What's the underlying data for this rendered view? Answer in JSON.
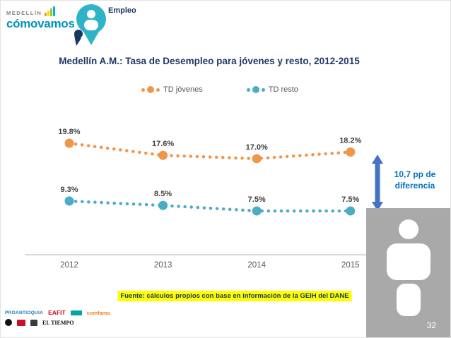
{
  "slide": {
    "brand": {
      "top": "MEDELLÍN",
      "bottom": "cómovamos"
    },
    "section": {
      "label": "Empleo"
    },
    "title": "Medellín A.M.: Tasa de Desempleo para jóvenes y resto, 2012-2015",
    "annotation": {
      "line1": "10,7 pp de",
      "line2": "diferencia"
    },
    "source": "Fuente: cálculos propios con base en información de la GEIH del DANE",
    "page_number": "32"
  },
  "chart_data": {
    "type": "line",
    "line_style": "dotted",
    "grid": false,
    "legend_position": "top",
    "y_axis_visible": false,
    "categories": [
      "2012",
      "2013",
      "2014",
      "2015"
    ],
    "series": [
      {
        "name": "TD jóvenes",
        "color": "#F0964B",
        "values": [
          19.8,
          17.6,
          17.0,
          18.2
        ],
        "data_labels": [
          "19.8%",
          "17.6%",
          "17.0%",
          "18.2%"
        ]
      },
      {
        "name": "TD resto",
        "color": "#4BACC6",
        "values": [
          9.3,
          8.5,
          7.5,
          7.5
        ],
        "data_labels": [
          "9.3%",
          "8.5%",
          "7.5%",
          "7.5%"
        ]
      }
    ],
    "annotation": "10,7 pp de diferencia"
  },
  "colors": {
    "title": "#1F3864",
    "annotation_text": "#0070C0",
    "arrow": "#4472C4",
    "source_highlight": "#FFFF00",
    "sidebar_gray": "#A9A9A9"
  },
  "sponsors": [
    "PROANTIOQUIA",
    "EAFIT",
    "comfama",
    "EL TIEMPO"
  ]
}
